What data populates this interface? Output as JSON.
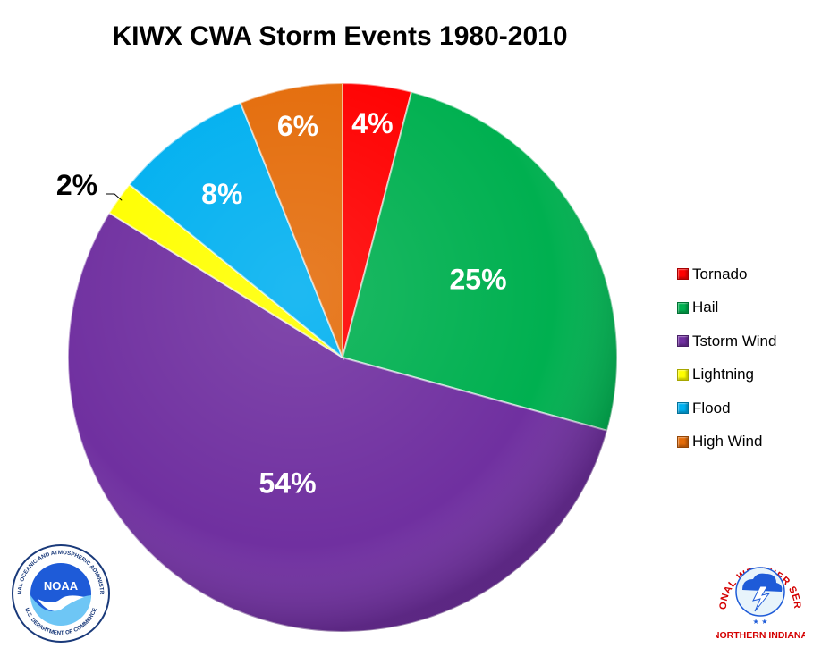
{
  "chart_data": {
    "type": "pie",
    "title": "KIWX CWA Storm Events 1980-2010",
    "categories": [
      "Tornado",
      "Hail",
      "Tstorm Wind",
      "Lightning",
      "Flood",
      "High Wind"
    ],
    "values": [
      4,
      25,
      54,
      2,
      8,
      6
    ],
    "labels": [
      "4%",
      "25%",
      "54%",
      "2%",
      "8%",
      "6%"
    ],
    "colors": [
      "#ff0000",
      "#00b050",
      "#7030a0",
      "#ffff00",
      "#00b0f0",
      "#e46c0a"
    ],
    "legend_position": "right"
  },
  "logos": {
    "noaa": {
      "center_text": "NOAA",
      "ring_text": "NATIONAL OCEANIC AND ATMOSPHERIC ADMINISTRATION · U.S. DEPARTMENT OF COMMERCE"
    },
    "nws": {
      "ring_text": "NATIONAL WEATHER SERVICE",
      "caption": "NORTHERN INDIANA"
    }
  }
}
